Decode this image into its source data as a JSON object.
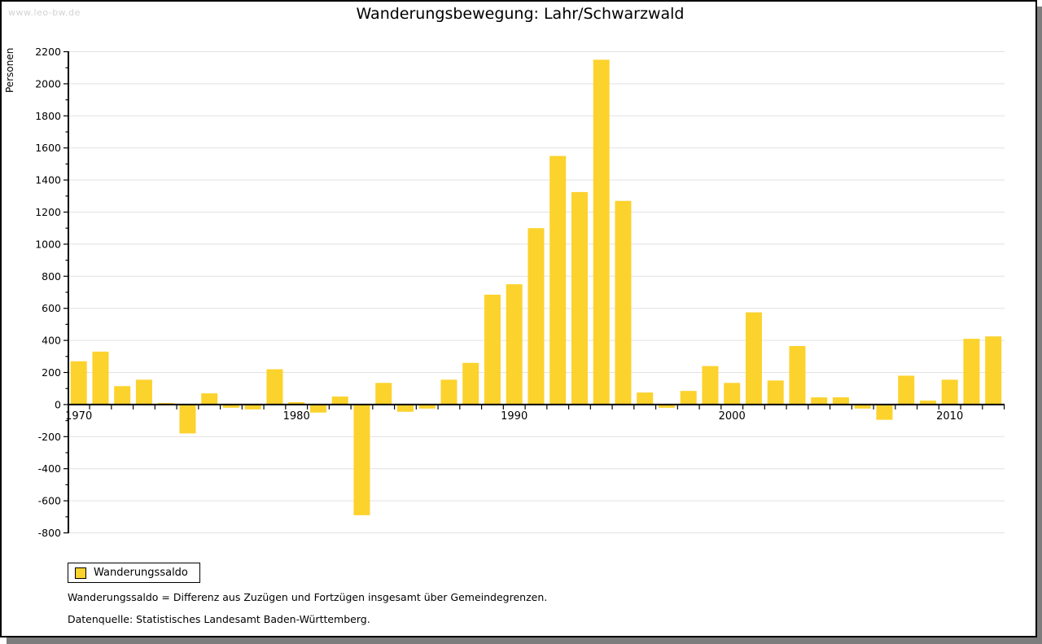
{
  "watermark": "www.leo-bw.de",
  "title": "Wanderungsbewegung: Lahr/Schwarzwald",
  "legend": {
    "label": "Wanderungssaldo"
  },
  "footnotes": {
    "definition": "Wanderungssaldo = Differenz aus Zuzügen und Fortzügen insgesamt über Gemeindegrenzen.",
    "source": "Datenquelle: Statistisches Landesamt Baden-Württemberg."
  },
  "colors": {
    "bar": "#fcd22d",
    "grid": "#e2e2e2",
    "axis": "#000000",
    "text": "#000000",
    "watermark": "#d3d3d3",
    "shadow": "#7d7d7d"
  },
  "chart_data": {
    "type": "bar",
    "title": "Wanderungsbewegung: Lahr/Schwarzwald",
    "series_name": "Wanderungssaldo",
    "ylabel": "Personen",
    "xlabel": "",
    "ylim": [
      -800,
      2200
    ],
    "ytick_step": 200,
    "ytick_minor_step": 100,
    "grid": true,
    "legend_position": "bottom-left",
    "x_decade_labels": [
      "1970",
      "1980",
      "1990",
      "2000",
      "2010"
    ],
    "x": [
      1970,
      1971,
      1972,
      1973,
      1974,
      1975,
      1976,
      1977,
      1978,
      1979,
      1980,
      1981,
      1982,
      1983,
      1984,
      1985,
      1986,
      1987,
      1988,
      1989,
      1990,
      1991,
      1992,
      1993,
      1994,
      1995,
      1996,
      1997,
      1998,
      1999,
      2000,
      2001,
      2002,
      2003,
      2004,
      2005,
      2006,
      2007,
      2008,
      2009,
      2010,
      2011,
      2012
    ],
    "values": [
      270,
      330,
      115,
      155,
      10,
      -180,
      70,
      -20,
      -30,
      220,
      15,
      -50,
      50,
      -690,
      135,
      -45,
      -25,
      155,
      260,
      685,
      750,
      1100,
      1550,
      1325,
      2150,
      1270,
      75,
      -20,
      85,
      240,
      135,
      575,
      150,
      365,
      45,
      45,
      -25,
      -95,
      180,
      25,
      155,
      410,
      425
    ]
  }
}
